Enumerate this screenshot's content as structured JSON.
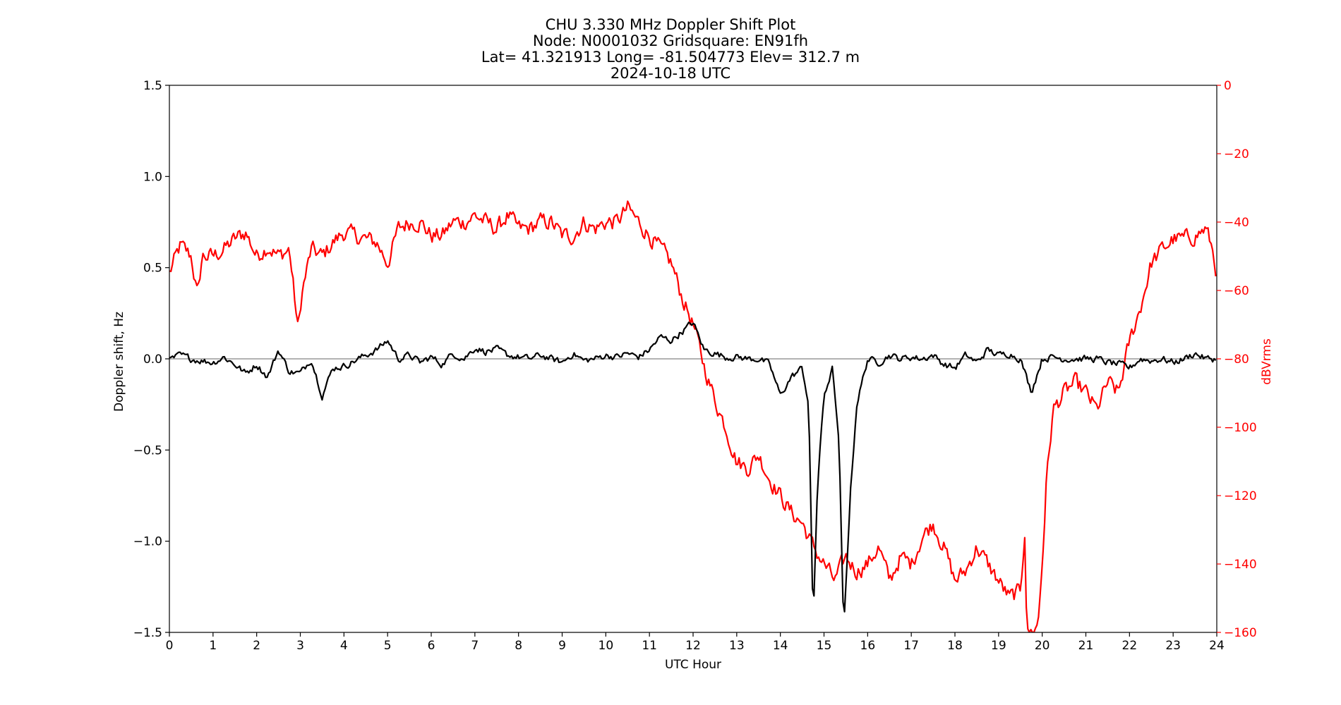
{
  "chart_data": {
    "type": "line",
    "title_lines": [
      "CHU 3.330 MHz Doppler Shift Plot",
      "Node:  N0001032     Gridsquare:  EN91fh",
      "Lat= 41.321913    Long= -81.504773    Elev= 312.7 m",
      "2024-10-18  UTC"
    ],
    "xlabel": "UTC Hour",
    "ylabel_left": "Doppler shift, Hz",
    "ylabel_right": "dBVrms",
    "xlim": [
      0,
      24
    ],
    "ylim_left": [
      -1.5,
      1.5
    ],
    "ylim_right": [
      -160,
      0
    ],
    "x_ticks": [
      "0",
      "1",
      "2",
      "3",
      "4",
      "5",
      "6",
      "7",
      "8",
      "9",
      "10",
      "11",
      "12",
      "13",
      "14",
      "15",
      "16",
      "17",
      "18",
      "19",
      "20",
      "21",
      "22",
      "23",
      "24"
    ],
    "y_ticks_left": [
      "1.5",
      "1.0",
      "0.5",
      "0.0",
      "−0.5",
      "−1.0",
      "−1.5"
    ],
    "y_ticks_left_values": [
      1.5,
      1.0,
      0.5,
      0.0,
      -0.5,
      -1.0,
      -1.5
    ],
    "y_ticks_right": [
      "0",
      "−20",
      "−40",
      "−60",
      "−80",
      "−100",
      "−120",
      "−140",
      "−160"
    ],
    "y_ticks_right_values": [
      0,
      -20,
      -40,
      -60,
      -80,
      -100,
      -120,
      -140,
      -160
    ],
    "zero_line": 0.0,
    "colors": {
      "doppler": "#000000",
      "power": "#ff0000",
      "zero_line": "#999999",
      "right_axis": "#ff0000"
    },
    "series": [
      {
        "axis": "left",
        "color": "#000000",
        "x": [
          0.0,
          0.25,
          0.5,
          0.75,
          1.0,
          1.25,
          1.5,
          1.75,
          2.0,
          2.25,
          2.5,
          2.75,
          3.0,
          3.25,
          3.5,
          3.75,
          4.0,
          4.25,
          4.5,
          4.75,
          5.0,
          5.25,
          5.5,
          5.75,
          6.0,
          6.25,
          6.5,
          6.75,
          7.0,
          7.25,
          7.5,
          7.75,
          8.0,
          8.25,
          8.5,
          8.75,
          9.0,
          9.25,
          9.5,
          9.75,
          10.0,
          10.25,
          10.5,
          10.75,
          11.0,
          11.25,
          11.5,
          11.75,
          12.0,
          12.25,
          12.5,
          12.75,
          13.0,
          13.25,
          13.5,
          13.75,
          14.0,
          14.25,
          14.5,
          14.65,
          14.75,
          14.85,
          15.0,
          15.2,
          15.35,
          15.45,
          15.6,
          15.75,
          15.9,
          16.0,
          16.25,
          16.5,
          16.75,
          17.0,
          17.25,
          17.5,
          17.75,
          18.0,
          18.25,
          18.5,
          18.75,
          19.0,
          19.25,
          19.5,
          19.75,
          20.0,
          20.25,
          20.5,
          20.75,
          21.0,
          21.25,
          21.5,
          21.75,
          22.0,
          22.25,
          22.5,
          22.75,
          23.0,
          23.25,
          23.5,
          23.75,
          24.0
        ],
        "y": [
          -0.01,
          0.02,
          0.0,
          -0.01,
          -0.02,
          0.01,
          -0.03,
          -0.08,
          -0.03,
          -0.1,
          0.05,
          -0.07,
          -0.08,
          0.0,
          -0.2,
          -0.05,
          -0.04,
          -0.01,
          0.02,
          0.05,
          0.1,
          0.0,
          0.02,
          -0.02,
          0.01,
          -0.03,
          0.03,
          0.0,
          0.06,
          0.04,
          0.05,
          0.02,
          0.01,
          0.0,
          0.02,
          0.0,
          -0.02,
          0.03,
          -0.01,
          0.0,
          0.02,
          0.01,
          0.03,
          0.01,
          0.05,
          0.12,
          0.1,
          0.15,
          0.2,
          0.05,
          0.03,
          0.01,
          0.01,
          0.0,
          0.0,
          -0.03,
          -0.2,
          -0.1,
          -0.05,
          -0.25,
          -1.45,
          -0.7,
          -0.2,
          -0.05,
          -0.5,
          -1.5,
          -0.75,
          -0.25,
          -0.1,
          0.0,
          -0.02,
          0.02,
          0.0,
          0.01,
          0.0,
          0.02,
          -0.03,
          -0.05,
          0.02,
          -0.02,
          0.05,
          0.02,
          0.03,
          0.0,
          -0.18,
          0.0,
          0.01,
          0.0,
          0.0,
          0.0,
          0.0,
          -0.02,
          -0.03,
          -0.05,
          0.0,
          -0.01,
          0.0,
          -0.02,
          0.0,
          0.03,
          0.0,
          0.0
        ],
        "noise": 0.03
      },
      {
        "axis": "right",
        "color": "#ff0000",
        "x": [
          0.0,
          0.25,
          0.5,
          0.65,
          0.75,
          1.0,
          1.25,
          1.5,
          1.75,
          2.0,
          2.25,
          2.5,
          2.75,
          2.95,
          3.0,
          3.05,
          3.25,
          3.5,
          3.75,
          4.0,
          4.25,
          4.5,
          4.75,
          5.0,
          5.25,
          5.5,
          5.75,
          6.0,
          6.25,
          6.5,
          6.75,
          7.0,
          7.25,
          7.5,
          7.75,
          8.0,
          8.25,
          8.5,
          8.75,
          9.0,
          9.25,
          9.5,
          9.75,
          10.0,
          10.25,
          10.5,
          10.75,
          11.0,
          11.25,
          11.5,
          11.75,
          12.0,
          12.25,
          12.5,
          12.75,
          13.0,
          13.25,
          13.5,
          13.75,
          14.0,
          14.25,
          14.5,
          14.75,
          15.0,
          15.25,
          15.5,
          15.75,
          16.0,
          16.25,
          16.5,
          16.75,
          17.0,
          17.25,
          17.5,
          17.75,
          18.0,
          18.25,
          18.5,
          18.75,
          19.0,
          19.25,
          19.5,
          19.6,
          19.65,
          19.75,
          19.9,
          20.0,
          20.1,
          20.25,
          20.5,
          20.75,
          21.0,
          21.25,
          21.5,
          21.75,
          22.0,
          22.25,
          22.5,
          22.75,
          23.0,
          23.25,
          23.5,
          23.75,
          23.9,
          24.0
        ],
        "y": [
          -55,
          -47,
          -50,
          -62,
          -50,
          -50,
          -48,
          -45,
          -43,
          -50,
          -47,
          -50,
          -48,
          -72,
          -65,
          -60,
          -48,
          -50,
          -46,
          -43,
          -44,
          -45,
          -46,
          -52,
          -42,
          -40,
          -40,
          -44,
          -44,
          -40,
          -40,
          -38,
          -40,
          -42,
          -38,
          -42,
          -42,
          -40,
          -40,
          -44,
          -44,
          -40,
          -42,
          -40,
          -40,
          -36,
          -40,
          -44,
          -48,
          -52,
          -62,
          -70,
          -82,
          -92,
          -100,
          -110,
          -112,
          -108,
          -115,
          -120,
          -125,
          -128,
          -135,
          -140,
          -145,
          -138,
          -142,
          -140,
          -135,
          -145,
          -138,
          -140,
          -132,
          -128,
          -135,
          -145,
          -142,
          -135,
          -140,
          -145,
          -150,
          -148,
          -130,
          -160,
          -160,
          -158,
          -140,
          -115,
          -95,
          -90,
          -87,
          -90,
          -95,
          -87,
          -90,
          -75,
          -65,
          -52,
          -48,
          -45,
          -45,
          -44,
          -42,
          -48,
          -55
        ],
        "noise": 4
      }
    ]
  }
}
